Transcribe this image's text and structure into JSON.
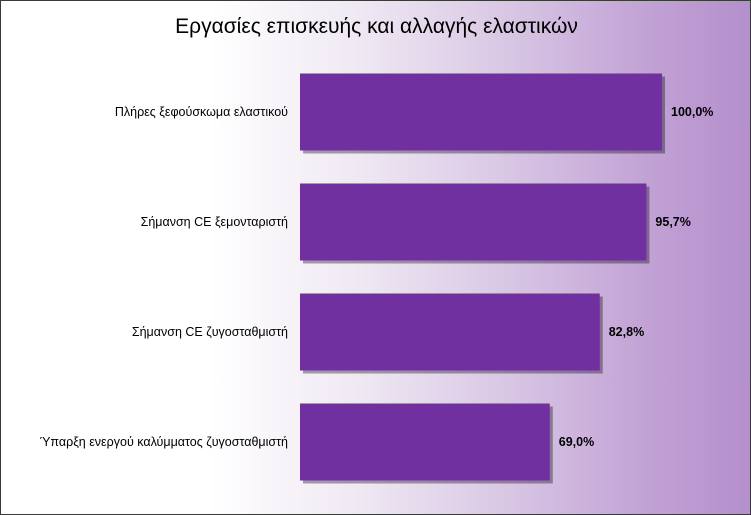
{
  "chart_data": {
    "type": "bar",
    "orientation": "horizontal",
    "title": "Εργασίες επισκευής και αλλαγής ελαστικών",
    "categories": [
      "Πλήρες ξεφούσκωμα ελαστικού",
      "Σήμανση CE ξεμονταριστή",
      "Σήμανση CE ζυγοσταθμιστή",
      "Ύπαρξη ενεργού καλύμματος ζυγοσταθμιστή"
    ],
    "values": [
      100.0,
      95.7,
      82.8,
      69.0
    ],
    "value_labels": [
      "100,0%",
      "95,7%",
      "82,8%",
      "69,0%"
    ],
    "xlim": [
      0,
      100
    ],
    "grid": false,
    "legend": "none",
    "bar_color": "#7030a0"
  }
}
